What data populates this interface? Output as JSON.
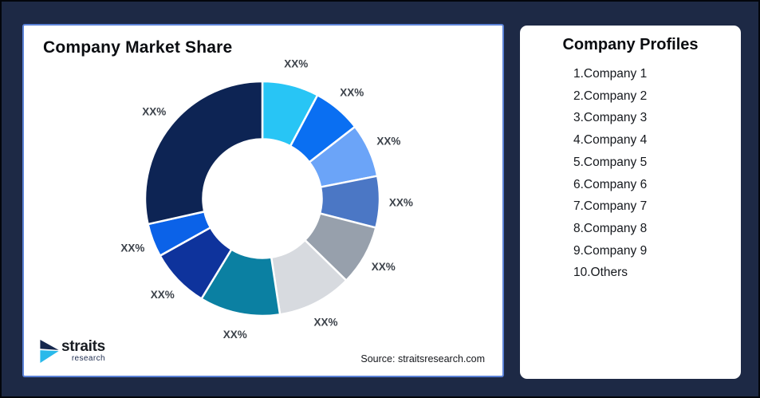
{
  "page": {
    "background": "#1d2945",
    "frame_border": "#03060c"
  },
  "chart_panel": {
    "title": "Company Market Share",
    "source_note": "Source: straitsresearch.com",
    "border_color": "#5b82d7",
    "logo": {
      "brand": "straits",
      "sub_brand": "research",
      "icon_navy": "#16284e",
      "icon_cyan": "#29b9ea"
    }
  },
  "profiles_panel": {
    "title": "Company Profiles",
    "items": [
      "1.Company 1",
      "2.Company 2",
      "3.Company 3",
      "4.Company 4",
      "5.Company 5",
      "6.Company 6",
      "7.Company 7",
      "8.Company 8",
      "9.Company 9",
      "10.Others"
    ]
  },
  "chart_data": {
    "type": "pie",
    "subtype": "donut",
    "title": "Company Market Share",
    "start_angle_deg": 0,
    "direction": "clockwise",
    "label_color": "#3c424a",
    "slices": [
      {
        "name": "Company 1",
        "value": 7.8,
        "color": "#28c5f5",
        "label": "XX%"
      },
      {
        "name": "Company 2",
        "value": 6.7,
        "color": "#0a6ff2",
        "label": "XX%"
      },
      {
        "name": "Company 3",
        "value": 7.4,
        "color": "#6ba4f8",
        "label": "XX%"
      },
      {
        "name": "Company 4",
        "value": 7.1,
        "color": "#4b77c5",
        "label": "XX%"
      },
      {
        "name": "Company 5",
        "value": 8.3,
        "color": "#97a0ac",
        "label": "XX%"
      },
      {
        "name": "Company 6",
        "value": 10.3,
        "color": "#d7dadf",
        "label": "XX%"
      },
      {
        "name": "Company 7",
        "value": 11.1,
        "color": "#0b80a2",
        "label": "XX%"
      },
      {
        "name": "Company 8",
        "value": 8.2,
        "color": "#0e339c",
        "label": "XX%"
      },
      {
        "name": "Company 9",
        "value": 4.6,
        "color": "#0b62e8",
        "label": "XX%"
      },
      {
        "name": "Others",
        "value": 28.5,
        "color": "#0d2454",
        "label": "XX%"
      }
    ]
  }
}
